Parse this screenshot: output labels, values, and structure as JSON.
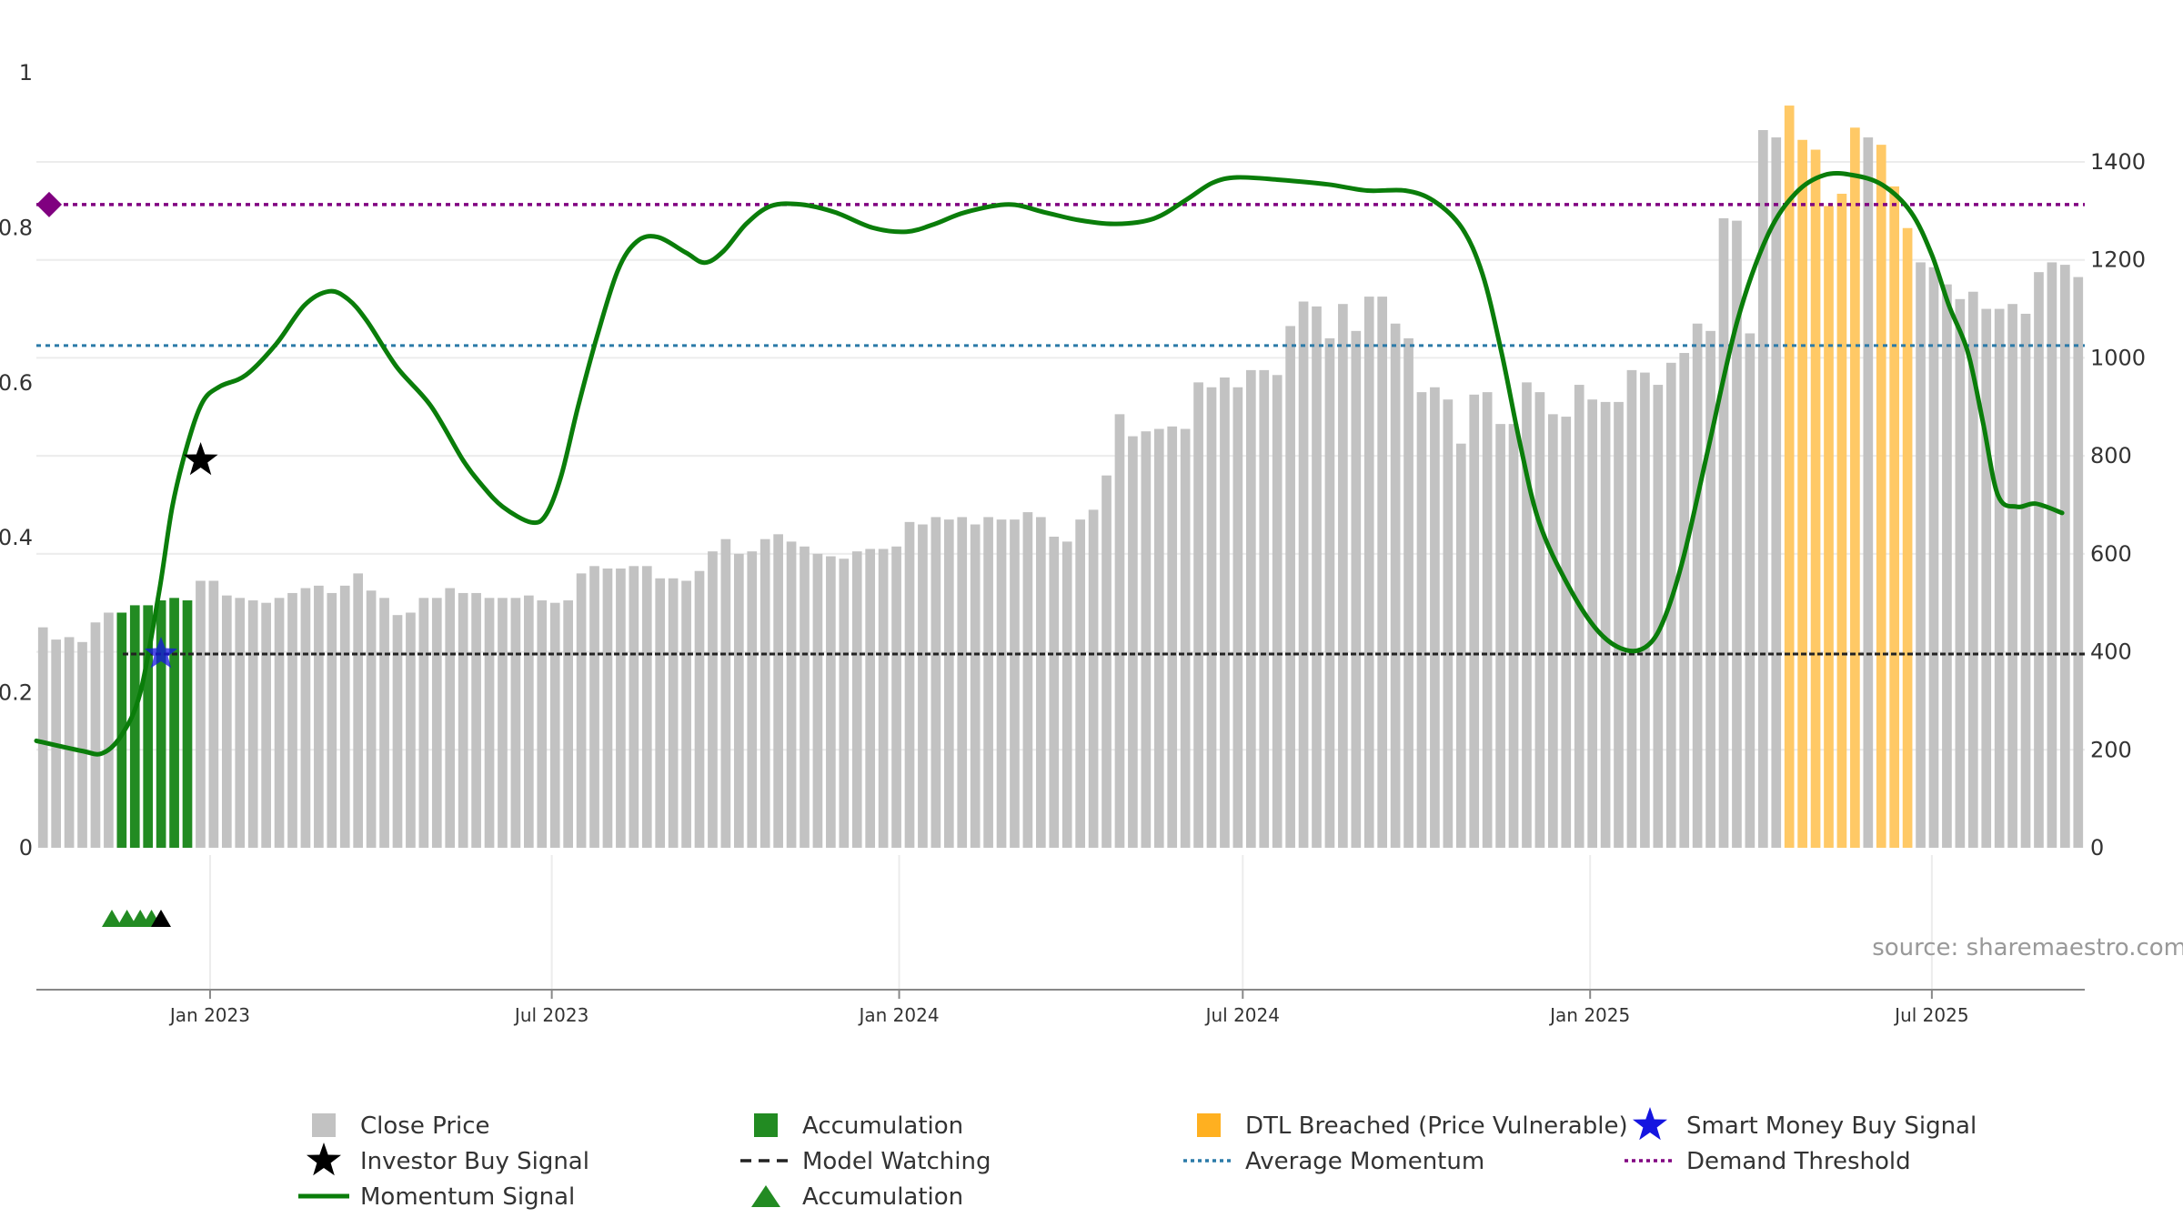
{
  "chart_data": {
    "type": "bar",
    "source": "source: sharemaestro.com",
    "left_axis": {
      "ylim": [
        0,
        1
      ],
      "ticks": [
        "0",
        "0.2",
        "0.4",
        "0.6",
        "0.8",
        "1"
      ],
      "tick_values": [
        0,
        0.2,
        0.4,
        0.6,
        0.8,
        1
      ]
    },
    "right_axis": {
      "ylim": [
        0,
        1580
      ],
      "ticks": [
        "0",
        "200",
        "400",
        "600",
        "800",
        "1000",
        "1200",
        "1400"
      ],
      "tick_values": [
        0,
        200,
        400,
        600,
        800,
        1000,
        1200,
        1400
      ]
    },
    "x_axis": {
      "start": "2022-10-01",
      "end": "2025-09-20",
      "ticks": [
        {
          "label": "Jan 2023",
          "date": "2023-01-01"
        },
        {
          "label": "Jul 2023",
          "date": "2023-07-01"
        },
        {
          "label": "Jan 2024",
          "date": "2024-01-01"
        },
        {
          "label": "Jul 2024",
          "date": "2024-07-01"
        },
        {
          "label": "Jan 2025",
          "date": "2025-01-01"
        },
        {
          "label": "Jul 2025",
          "date": "2025-07-01"
        }
      ]
    },
    "close_price": [
      450,
      425,
      430,
      420,
      460,
      480,
      480,
      495,
      495,
      505,
      510,
      505,
      545,
      545,
      515,
      510,
      505,
      500,
      510,
      520,
      530,
      535,
      520,
      535,
      560,
      525,
      510,
      475,
      480,
      510,
      510,
      530,
      520,
      520,
      510,
      510,
      510,
      515,
      505,
      500,
      505,
      560,
      575,
      570,
      570,
      575,
      575,
      550,
      550,
      545,
      565,
      605,
      630,
      600,
      605,
      630,
      640,
      625,
      615,
      600,
      595,
      590,
      605,
      610,
      610,
      615,
      665,
      660,
      675,
      670,
      675,
      660,
      675,
      670,
      670,
      685,
      675,
      635,
      625,
      670,
      690,
      760,
      885,
      840,
      850,
      855,
      860,
      855,
      950,
      940,
      960,
      940,
      975,
      975,
      965,
      1065,
      1115,
      1105,
      1040,
      1110,
      1055,
      1125,
      1125,
      1070,
      1040,
      930,
      940,
      915,
      825,
      925,
      930,
      865,
      865,
      950,
      930,
      885,
      880,
      945,
      915,
      910,
      910,
      975,
      970,
      945,
      990,
      1010,
      1070,
      1055,
      1285,
      1280,
      1050,
      1465,
      1450,
      1515,
      1445,
      1425,
      1310,
      1335,
      1470,
      1450,
      1435,
      1350,
      1265,
      1195,
      1185,
      1150,
      1120,
      1135,
      1100,
      1100,
      1110,
      1090,
      1175,
      1195,
      1190,
      1165
    ],
    "accumulation_bars": [
      6,
      7,
      8,
      9,
      10,
      11
    ],
    "dtl_breached_bars": [
      133,
      134,
      135,
      136,
      137,
      138,
      140,
      141,
      142
    ],
    "momentum_signal": [
      [
        "2022-10-01",
        0.138
      ],
      [
        "2022-10-25",
        0.125
      ],
      [
        "2022-11-05",
        0.122
      ],
      [
        "2022-11-15",
        0.145
      ],
      [
        "2022-11-25",
        0.2
      ],
      [
        "2022-12-05",
        0.33
      ],
      [
        "2022-12-12",
        0.44
      ],
      [
        "2022-12-20",
        0.52
      ],
      [
        "2022-12-28",
        0.575
      ],
      [
        "2023-01-06",
        0.595
      ],
      [
        "2023-01-20",
        0.61
      ],
      [
        "2023-02-05",
        0.65
      ],
      [
        "2023-02-20",
        0.7
      ],
      [
        "2023-03-05",
        0.718
      ],
      [
        "2023-03-15",
        0.708
      ],
      [
        "2023-03-25",
        0.68
      ],
      [
        "2023-04-10",
        0.62
      ],
      [
        "2023-04-28",
        0.57
      ],
      [
        "2023-05-15",
        0.5
      ],
      [
        "2023-05-25",
        0.468
      ],
      [
        "2023-06-05",
        0.44
      ],
      [
        "2023-06-20",
        0.42
      ],
      [
        "2023-06-28",
        0.43
      ],
      [
        "2023-07-06",
        0.48
      ],
      [
        "2023-07-15",
        0.57
      ],
      [
        "2023-07-25",
        0.66
      ],
      [
        "2023-08-05",
        0.745
      ],
      [
        "2023-08-15",
        0.782
      ],
      [
        "2023-08-26",
        0.788
      ],
      [
        "2023-09-10",
        0.768
      ],
      [
        "2023-09-20",
        0.755
      ],
      [
        "2023-09-30",
        0.77
      ],
      [
        "2023-10-12",
        0.805
      ],
      [
        "2023-10-25",
        0.828
      ],
      [
        "2023-11-10",
        0.83
      ],
      [
        "2023-11-28",
        0.82
      ],
      [
        "2023-12-18",
        0.8
      ],
      [
        "2024-01-05",
        0.795
      ],
      [
        "2024-01-20",
        0.805
      ],
      [
        "2024-02-05",
        0.82
      ],
      [
        "2024-02-28",
        0.83
      ],
      [
        "2024-03-18",
        0.82
      ],
      [
        "2024-04-05",
        0.81
      ],
      [
        "2024-04-25",
        0.805
      ],
      [
        "2024-05-15",
        0.812
      ],
      [
        "2024-06-01",
        0.836
      ],
      [
        "2024-06-15",
        0.858
      ],
      [
        "2024-06-28",
        0.865
      ],
      [
        "2024-07-20",
        0.862
      ],
      [
        "2024-08-15",
        0.856
      ],
      [
        "2024-09-05",
        0.848
      ],
      [
        "2024-09-25",
        0.848
      ],
      [
        "2024-10-10",
        0.835
      ],
      [
        "2024-10-25",
        0.8
      ],
      [
        "2024-11-05",
        0.74
      ],
      [
        "2024-11-15",
        0.64
      ],
      [
        "2024-11-25",
        0.52
      ],
      [
        "2024-12-05",
        0.42
      ],
      [
        "2024-12-20",
        0.34
      ],
      [
        "2025-01-05",
        0.28
      ],
      [
        "2025-01-20",
        0.255
      ],
      [
        "2025-02-01",
        0.262
      ],
      [
        "2025-02-10",
        0.3
      ],
      [
        "2025-02-20",
        0.38
      ],
      [
        "2025-03-05",
        0.52
      ],
      [
        "2025-03-20",
        0.68
      ],
      [
        "2025-04-05",
        0.79
      ],
      [
        "2025-04-20",
        0.845
      ],
      [
        "2025-05-05",
        0.868
      ],
      [
        "2025-05-20",
        0.868
      ],
      [
        "2025-06-05",
        0.855
      ],
      [
        "2025-06-20",
        0.82
      ],
      [
        "2025-07-01",
        0.765
      ],
      [
        "2025-07-10",
        0.7
      ],
      [
        "2025-07-20",
        0.64
      ],
      [
        "2025-07-28",
        0.55
      ],
      [
        "2025-08-05",
        0.455
      ],
      [
        "2025-08-15",
        0.44
      ],
      [
        "2025-08-25",
        0.444
      ],
      [
        "2025-09-08",
        0.432
      ]
    ],
    "average_momentum": 0.648,
    "model_watching": 0.25,
    "demand_threshold": 0.83,
    "investor_buy_signal": {
      "date": "2022-12-27",
      "value": 0.5
    },
    "smart_money_buy_signal": {
      "date": "2022-12-06",
      "value": 0.25
    },
    "accumulation_markers": [
      "2022-11-10",
      "2022-11-18",
      "2022-11-25",
      "2022-12-01"
    ],
    "investor_markers": [
      "2022-12-06"
    ],
    "legend": [
      {
        "key": "close",
        "label": "Close Price"
      },
      {
        "key": "accum_bar",
        "label": "Accumulation"
      },
      {
        "key": "dtl",
        "label": "DTL Breached (Price Vulnerable)"
      },
      {
        "key": "smart",
        "label": "Smart Money Buy Signal"
      },
      {
        "key": "investor",
        "label": "Investor Buy Signal"
      },
      {
        "key": "watching",
        "label": "Model Watching"
      },
      {
        "key": "avgmom",
        "label": "Average Momentum"
      },
      {
        "key": "demand",
        "label": "Demand Threshold"
      },
      {
        "key": "momentum",
        "label": "Momentum Signal"
      },
      {
        "key": "accum_tri",
        "label": "Accumulation"
      }
    ],
    "colors": {
      "close": "#c2c2c2",
      "accumulation": "#228B22",
      "dtl": "#FFC966",
      "momentum": "#0a7d0a",
      "average_momentum": "#2b7aa8",
      "model_watching": "#222222",
      "demand_threshold": "#800080",
      "smart_money": "#1515e0",
      "investor": "#000000"
    }
  }
}
